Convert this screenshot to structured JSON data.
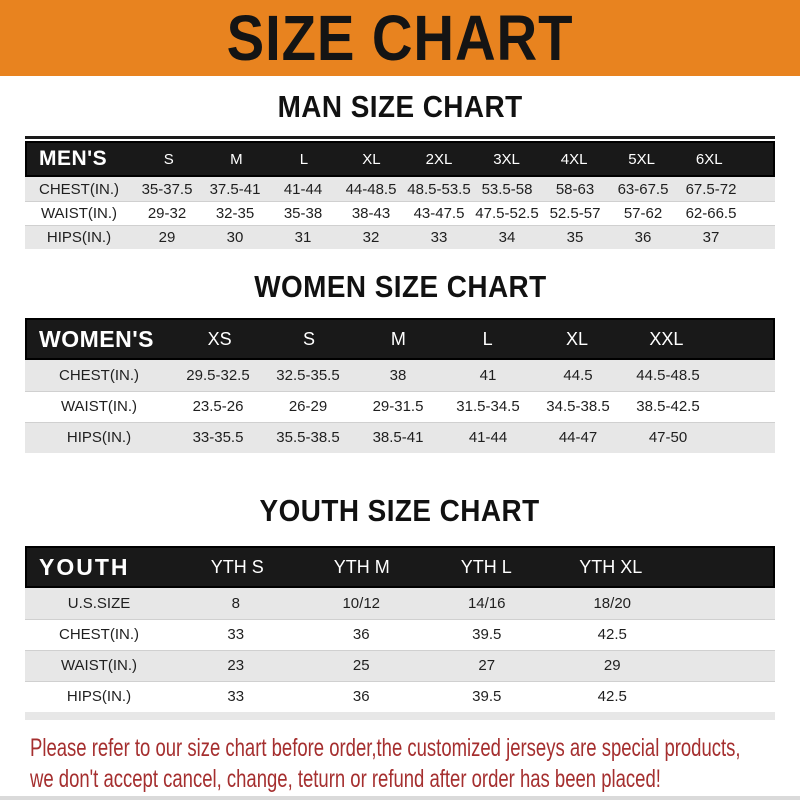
{
  "banner": {
    "title": "SIZE CHART"
  },
  "sections": {
    "men": {
      "heading": "MAN SIZE CHART",
      "header_label": "MEN'S",
      "columns": [
        "S",
        "M",
        "L",
        "XL",
        "2XL",
        "3XL",
        "4XL",
        "5XL",
        "6XL"
      ],
      "rows": [
        {
          "label": "CHEST(IN.)",
          "values": [
            "35-37.5",
            "37.5-41",
            "41-44",
            "44-48.5",
            "48.5-53.5",
            "53.5-58",
            "58-63",
            "63-67.5",
            "67.5-72"
          ]
        },
        {
          "label": "WAIST(IN.)",
          "values": [
            "29-32",
            "32-35",
            "35-38",
            "38-43",
            "43-47.5",
            "47.5-52.5",
            "52.5-57",
            "57-62",
            "62-66.5"
          ]
        },
        {
          "label": "HIPS(IN.)",
          "values": [
            "29",
            "30",
            "31",
            "32",
            "33",
            "34",
            "35",
            "36",
            "37"
          ]
        }
      ]
    },
    "women": {
      "heading": "WOMEN SIZE CHART",
      "header_label": "WOMEN'S",
      "columns": [
        "XS",
        "S",
        "M",
        "L",
        "XL",
        "XXL"
      ],
      "rows": [
        {
          "label": "CHEST(IN.)",
          "values": [
            "29.5-32.5",
            "32.5-35.5",
            "38",
            "41",
            "44.5",
            "44.5-48.5"
          ]
        },
        {
          "label": "WAIST(IN.)",
          "values": [
            "23.5-26",
            "26-29",
            "29-31.5",
            "31.5-34.5",
            "34.5-38.5",
            "38.5-42.5"
          ]
        },
        {
          "label": "HIPS(IN.)",
          "values": [
            "33-35.5",
            "35.5-38.5",
            "38.5-41",
            "41-44",
            "44-47",
            "47-50"
          ]
        }
      ]
    },
    "youth": {
      "heading": "YOUTH SIZE CHART",
      "header_label": "YOUTH",
      "columns": [
        "YTH S",
        "YTH M",
        "YTH L",
        "YTH XL"
      ],
      "rows": [
        {
          "label": "U.S.SIZE",
          "values": [
            "8",
            "10/12",
            "14/16",
            "18/20"
          ]
        },
        {
          "label": "CHEST(IN.)",
          "values": [
            "33",
            "36",
            "39.5",
            "42.5"
          ]
        },
        {
          "label": "WAIST(IN.)",
          "values": [
            "23",
            "25",
            "27",
            "29"
          ]
        },
        {
          "label": "HIPS(IN.)",
          "values": [
            "33",
            "36",
            "39.5",
            "42.5"
          ]
        }
      ]
    }
  },
  "footer": {
    "line1": "Please refer to our size chart before order,the customized jerseys are special products,",
    "line2": "we don't accept cancel, change, teturn or refund after order has been placed!"
  },
  "colors": {
    "banner_orange": "#E8831F",
    "header_bar_black": "#191919",
    "row_gray": "#E7E7E7",
    "footer_red": "#A52F2F"
  }
}
